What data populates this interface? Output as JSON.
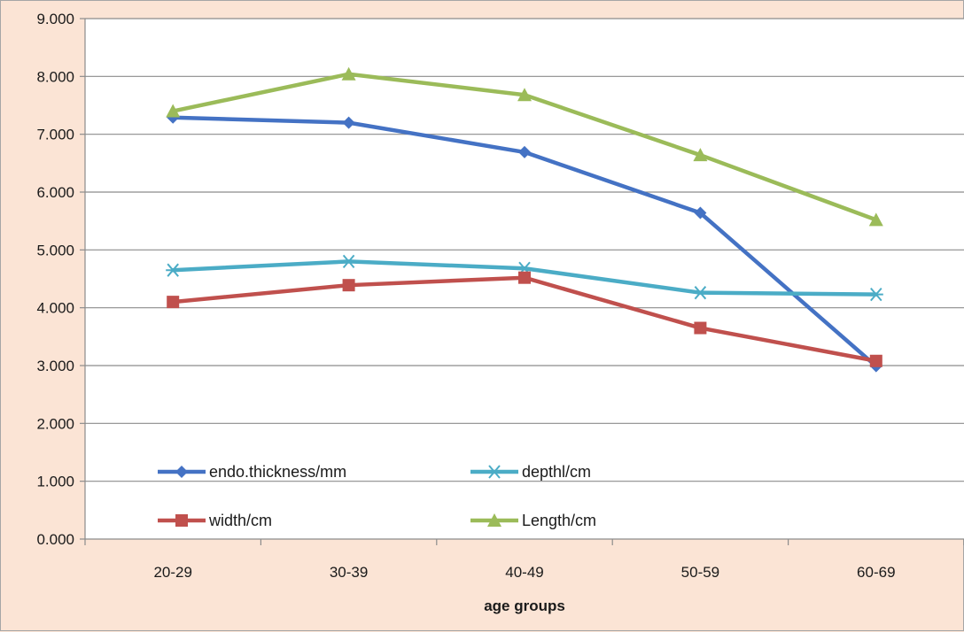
{
  "chart_data": {
    "type": "line",
    "categories": [
      "20-29",
      "30-39",
      "40-49",
      "50-59",
      "60-69"
    ],
    "xlabel": "age groups",
    "ylabel": "",
    "ylim": [
      0,
      9
    ],
    "yticks": [
      "0.000",
      "1.000",
      "2.000",
      "3.000",
      "4.000",
      "5.000",
      "6.000",
      "7.000",
      "8.000",
      "9.000"
    ],
    "grid": true,
    "legend_position": "bottom-left inside plot",
    "series": [
      {
        "name": "endo.thickness/mm",
        "color": "#4472c4",
        "marker": "diamond",
        "values": [
          7.29,
          7.2,
          6.69,
          5.64,
          2.99
        ]
      },
      {
        "name": "depthl/cm",
        "color": "#4bacc6",
        "marker": "asterisk",
        "values": [
          4.65,
          4.8,
          4.68,
          4.26,
          4.23
        ]
      },
      {
        "name": "width/cm",
        "color": "#c0504d",
        "marker": "square",
        "values": [
          4.1,
          4.39,
          4.52,
          3.65,
          3.08
        ]
      },
      {
        "name": "Length/cm",
        "color": "#9bbb59",
        "marker": "triangle",
        "values": [
          7.4,
          8.04,
          7.68,
          6.64,
          5.52
        ]
      }
    ]
  }
}
